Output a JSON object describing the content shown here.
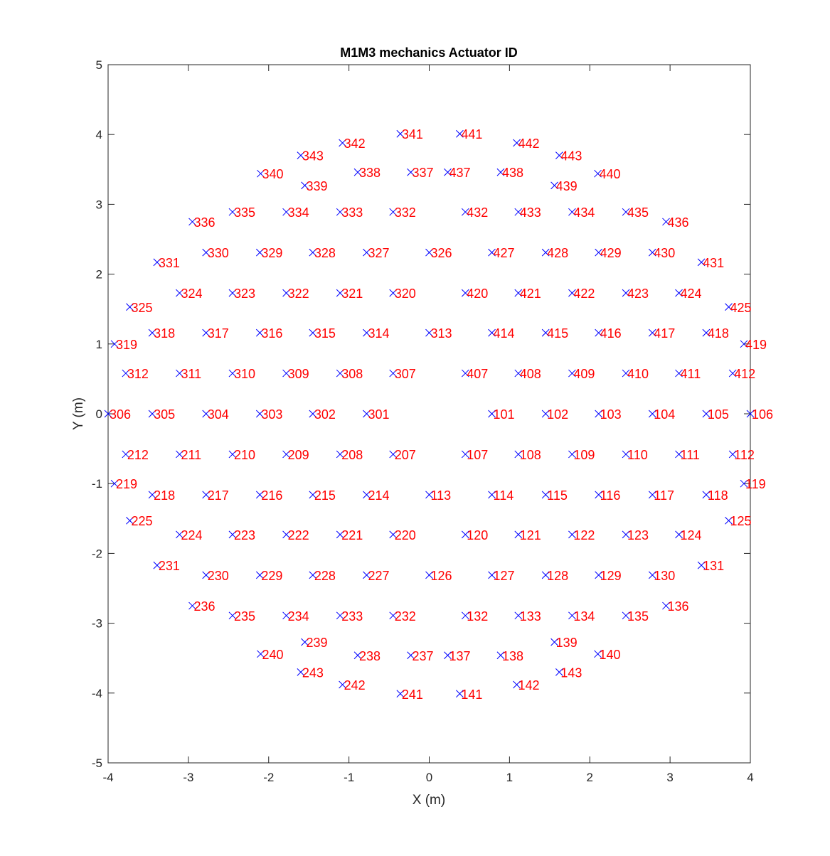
{
  "chart_data": {
    "type": "scatter",
    "title": "M1M3 mechanics Actuator ID",
    "xlabel": "X (m)",
    "ylabel": "Y (m)",
    "xlim": [
      -4,
      4
    ],
    "ylim": [
      -5,
      5
    ],
    "xticks": [
      "-4",
      "-3",
      "-2",
      "-1",
      "0",
      "1",
      "2",
      "3",
      "4"
    ],
    "yticks": [
      "-5",
      "-4",
      "-3",
      "-2",
      "-1",
      "0",
      "1",
      "2",
      "3",
      "4",
      "5"
    ],
    "grid": false,
    "marker": "x",
    "marker_color": "#0000ff",
    "label_color": "#ff0000",
    "points": [
      {
        "id": "341",
        "x": -0.36,
        "y": 4.01
      },
      {
        "id": "441",
        "x": 0.38,
        "y": 4.01
      },
      {
        "id": "342",
        "x": -1.08,
        "y": 3.88
      },
      {
        "id": "442",
        "x": 1.09,
        "y": 3.88
      },
      {
        "id": "343",
        "x": -1.6,
        "y": 3.7
      },
      {
        "id": "443",
        "x": 1.62,
        "y": 3.7
      },
      {
        "id": "340",
        "x": -2.1,
        "y": 3.44
      },
      {
        "id": "338",
        "x": -0.89,
        "y": 3.46
      },
      {
        "id": "337",
        "x": -0.23,
        "y": 3.46
      },
      {
        "id": "437",
        "x": 0.23,
        "y": 3.46
      },
      {
        "id": "438",
        "x": 0.89,
        "y": 3.46
      },
      {
        "id": "440",
        "x": 2.1,
        "y": 3.44
      },
      {
        "id": "339",
        "x": -1.55,
        "y": 3.27
      },
      {
        "id": "439",
        "x": 1.56,
        "y": 3.27
      },
      {
        "id": "335",
        "x": -2.45,
        "y": 2.89
      },
      {
        "id": "334",
        "x": -1.78,
        "y": 2.89
      },
      {
        "id": "333",
        "x": -1.11,
        "y": 2.89
      },
      {
        "id": "332",
        "x": -0.45,
        "y": 2.89
      },
      {
        "id": "432",
        "x": 0.45,
        "y": 2.89
      },
      {
        "id": "433",
        "x": 1.11,
        "y": 2.89
      },
      {
        "id": "434",
        "x": 1.78,
        "y": 2.89
      },
      {
        "id": "435",
        "x": 2.45,
        "y": 2.89
      },
      {
        "id": "336",
        "x": -2.95,
        "y": 2.75
      },
      {
        "id": "436",
        "x": 2.95,
        "y": 2.75
      },
      {
        "id": "330",
        "x": -2.78,
        "y": 2.31
      },
      {
        "id": "329",
        "x": -2.11,
        "y": 2.31
      },
      {
        "id": "328",
        "x": -1.45,
        "y": 2.31
      },
      {
        "id": "327",
        "x": -0.78,
        "y": 2.31
      },
      {
        "id": "326",
        "x": 0.0,
        "y": 2.31
      },
      {
        "id": "427",
        "x": 0.78,
        "y": 2.31
      },
      {
        "id": "428",
        "x": 1.45,
        "y": 2.31
      },
      {
        "id": "429",
        "x": 2.11,
        "y": 2.31
      },
      {
        "id": "430",
        "x": 2.78,
        "y": 2.31
      },
      {
        "id": "331",
        "x": -3.39,
        "y": 2.17
      },
      {
        "id": "431",
        "x": 3.39,
        "y": 2.17
      },
      {
        "id": "324",
        "x": -3.11,
        "y": 1.73
      },
      {
        "id": "323",
        "x": -2.45,
        "y": 1.73
      },
      {
        "id": "322",
        "x": -1.78,
        "y": 1.73
      },
      {
        "id": "321",
        "x": -1.11,
        "y": 1.73
      },
      {
        "id": "320",
        "x": -0.45,
        "y": 1.73
      },
      {
        "id": "420",
        "x": 0.45,
        "y": 1.73
      },
      {
        "id": "421",
        "x": 1.11,
        "y": 1.73
      },
      {
        "id": "422",
        "x": 1.78,
        "y": 1.73
      },
      {
        "id": "423",
        "x": 2.45,
        "y": 1.73
      },
      {
        "id": "424",
        "x": 3.11,
        "y": 1.73
      },
      {
        "id": "325",
        "x": -3.73,
        "y": 1.53
      },
      {
        "id": "425",
        "x": 3.73,
        "y": 1.53
      },
      {
        "id": "318",
        "x": -3.45,
        "y": 1.16
      },
      {
        "id": "317",
        "x": -2.78,
        "y": 1.16
      },
      {
        "id": "316",
        "x": -2.11,
        "y": 1.16
      },
      {
        "id": "315",
        "x": -1.45,
        "y": 1.16
      },
      {
        "id": "314",
        "x": -0.78,
        "y": 1.16
      },
      {
        "id": "313",
        "x": 0.0,
        "y": 1.16
      },
      {
        "id": "414",
        "x": 0.78,
        "y": 1.16
      },
      {
        "id": "415",
        "x": 1.45,
        "y": 1.16
      },
      {
        "id": "416",
        "x": 2.11,
        "y": 1.16
      },
      {
        "id": "417",
        "x": 2.78,
        "y": 1.16
      },
      {
        "id": "418",
        "x": 3.45,
        "y": 1.16
      },
      {
        "id": "319",
        "x": -3.92,
        "y": 1.0
      },
      {
        "id": "419",
        "x": 3.92,
        "y": 1.0
      },
      {
        "id": "312",
        "x": -3.78,
        "y": 0.58
      },
      {
        "id": "311",
        "x": -3.11,
        "y": 0.58
      },
      {
        "id": "310",
        "x": -2.45,
        "y": 0.58
      },
      {
        "id": "309",
        "x": -1.78,
        "y": 0.58
      },
      {
        "id": "308",
        "x": -1.11,
        "y": 0.58
      },
      {
        "id": "307",
        "x": -0.45,
        "y": 0.58
      },
      {
        "id": "407",
        "x": 0.45,
        "y": 0.58
      },
      {
        "id": "408",
        "x": 1.11,
        "y": 0.58
      },
      {
        "id": "409",
        "x": 1.78,
        "y": 0.58
      },
      {
        "id": "410",
        "x": 2.45,
        "y": 0.58
      },
      {
        "id": "411",
        "x": 3.11,
        "y": 0.58
      },
      {
        "id": "412",
        "x": 3.78,
        "y": 0.58
      },
      {
        "id": "306",
        "x": -4.0,
        "y": 0.0
      },
      {
        "id": "305",
        "x": -3.45,
        "y": 0.0
      },
      {
        "id": "304",
        "x": -2.78,
        "y": 0.0
      },
      {
        "id": "303",
        "x": -2.11,
        "y": 0.0
      },
      {
        "id": "302",
        "x": -1.45,
        "y": 0.0
      },
      {
        "id": "301",
        "x": -0.78,
        "y": 0.0
      },
      {
        "id": "101",
        "x": 0.78,
        "y": 0.0
      },
      {
        "id": "102",
        "x": 1.45,
        "y": 0.0
      },
      {
        "id": "103",
        "x": 2.11,
        "y": 0.0
      },
      {
        "id": "104",
        "x": 2.78,
        "y": 0.0
      },
      {
        "id": "105",
        "x": 3.45,
        "y": 0.0
      },
      {
        "id": "106",
        "x": 4.0,
        "y": 0.0
      },
      {
        "id": "212",
        "x": -3.78,
        "y": -0.58
      },
      {
        "id": "211",
        "x": -3.11,
        "y": -0.58
      },
      {
        "id": "210",
        "x": -2.45,
        "y": -0.58
      },
      {
        "id": "209",
        "x": -1.78,
        "y": -0.58
      },
      {
        "id": "208",
        "x": -1.11,
        "y": -0.58
      },
      {
        "id": "207",
        "x": -0.45,
        "y": -0.58
      },
      {
        "id": "107",
        "x": 0.45,
        "y": -0.58
      },
      {
        "id": "108",
        "x": 1.11,
        "y": -0.58
      },
      {
        "id": "109",
        "x": 1.78,
        "y": -0.58
      },
      {
        "id": "110",
        "x": 2.45,
        "y": -0.58
      },
      {
        "id": "111",
        "x": 3.11,
        "y": -0.58
      },
      {
        "id": "112",
        "x": 3.78,
        "y": -0.58
      },
      {
        "id": "219",
        "x": -3.92,
        "y": -1.0
      },
      {
        "id": "119",
        "x": 3.92,
        "y": -1.0
      },
      {
        "id": "218",
        "x": -3.45,
        "y": -1.16
      },
      {
        "id": "217",
        "x": -2.78,
        "y": -1.16
      },
      {
        "id": "216",
        "x": -2.11,
        "y": -1.16
      },
      {
        "id": "215",
        "x": -1.45,
        "y": -1.16
      },
      {
        "id": "214",
        "x": -0.78,
        "y": -1.16
      },
      {
        "id": "113",
        "x": 0.0,
        "y": -1.16
      },
      {
        "id": "114",
        "x": 0.78,
        "y": -1.16
      },
      {
        "id": "115",
        "x": 1.45,
        "y": -1.16
      },
      {
        "id": "116",
        "x": 2.11,
        "y": -1.16
      },
      {
        "id": "117",
        "x": 2.78,
        "y": -1.16
      },
      {
        "id": "118",
        "x": 3.45,
        "y": -1.16
      },
      {
        "id": "225",
        "x": -3.73,
        "y": -1.53
      },
      {
        "id": "125",
        "x": 3.73,
        "y": -1.53
      },
      {
        "id": "224",
        "x": -3.11,
        "y": -1.73
      },
      {
        "id": "223",
        "x": -2.45,
        "y": -1.73
      },
      {
        "id": "222",
        "x": -1.78,
        "y": -1.73
      },
      {
        "id": "221",
        "x": -1.11,
        "y": -1.73
      },
      {
        "id": "220",
        "x": -0.45,
        "y": -1.73
      },
      {
        "id": "120",
        "x": 0.45,
        "y": -1.73
      },
      {
        "id": "121",
        "x": 1.11,
        "y": -1.73
      },
      {
        "id": "122",
        "x": 1.78,
        "y": -1.73
      },
      {
        "id": "123",
        "x": 2.45,
        "y": -1.73
      },
      {
        "id": "124",
        "x": 3.11,
        "y": -1.73
      },
      {
        "id": "231",
        "x": -3.39,
        "y": -2.17
      },
      {
        "id": "131",
        "x": 3.39,
        "y": -2.17
      },
      {
        "id": "230",
        "x": -2.78,
        "y": -2.31
      },
      {
        "id": "229",
        "x": -2.11,
        "y": -2.31
      },
      {
        "id": "228",
        "x": -1.45,
        "y": -2.31
      },
      {
        "id": "227",
        "x": -0.78,
        "y": -2.31
      },
      {
        "id": "126",
        "x": 0.0,
        "y": -2.31
      },
      {
        "id": "127",
        "x": 0.78,
        "y": -2.31
      },
      {
        "id": "128",
        "x": 1.45,
        "y": -2.31
      },
      {
        "id": "129",
        "x": 2.11,
        "y": -2.31
      },
      {
        "id": "130",
        "x": 2.78,
        "y": -2.31
      },
      {
        "id": "236",
        "x": -2.95,
        "y": -2.75
      },
      {
        "id": "136",
        "x": 2.95,
        "y": -2.75
      },
      {
        "id": "235",
        "x": -2.45,
        "y": -2.89
      },
      {
        "id": "234",
        "x": -1.78,
        "y": -2.89
      },
      {
        "id": "233",
        "x": -1.11,
        "y": -2.89
      },
      {
        "id": "232",
        "x": -0.45,
        "y": -2.89
      },
      {
        "id": "132",
        "x": 0.45,
        "y": -2.89
      },
      {
        "id": "133",
        "x": 1.11,
        "y": -2.89
      },
      {
        "id": "134",
        "x": 1.78,
        "y": -2.89
      },
      {
        "id": "135",
        "x": 2.45,
        "y": -2.89
      },
      {
        "id": "239",
        "x": -1.55,
        "y": -3.27
      },
      {
        "id": "139",
        "x": 1.56,
        "y": -3.27
      },
      {
        "id": "240",
        "x": -2.1,
        "y": -3.44
      },
      {
        "id": "238",
        "x": -0.89,
        "y": -3.46
      },
      {
        "id": "237",
        "x": -0.23,
        "y": -3.46
      },
      {
        "id": "137",
        "x": 0.23,
        "y": -3.46
      },
      {
        "id": "138",
        "x": 0.89,
        "y": -3.46
      },
      {
        "id": "140",
        "x": 2.1,
        "y": -3.44
      },
      {
        "id": "243",
        "x": -1.6,
        "y": -3.7
      },
      {
        "id": "143",
        "x": 1.62,
        "y": -3.7
      },
      {
        "id": "242",
        "x": -1.08,
        "y": -3.88
      },
      {
        "id": "142",
        "x": 1.09,
        "y": -3.88
      },
      {
        "id": "241",
        "x": -0.36,
        "y": -4.01
      },
      {
        "id": "141",
        "x": 0.38,
        "y": -4.01
      }
    ]
  }
}
